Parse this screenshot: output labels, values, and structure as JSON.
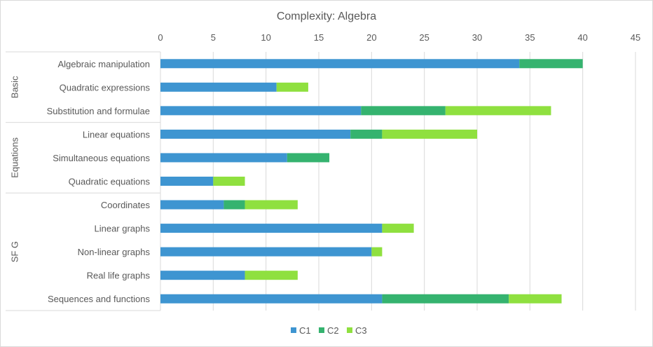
{
  "chart_data": {
    "type": "bar",
    "orientation": "horizontal",
    "stacked": true,
    "title": "Complexity:  Algebra",
    "xlim": [
      0,
      45
    ],
    "x_ticks": [
      0,
      5,
      10,
      15,
      20,
      25,
      30,
      35,
      40,
      45
    ],
    "x_axis_position": "top",
    "grid": true,
    "legend_position": "bottom",
    "groups": [
      {
        "label": "Basic",
        "categories": [
          "Algebraic manipulation",
          "Quadratic expressions",
          "Substitution and formulae"
        ]
      },
      {
        "label": "Equations",
        "categories": [
          "Linear equations",
          "Simultaneous equations",
          "Quadratic equations"
        ]
      },
      {
        "label": "SF G",
        "categories": [
          "Coordinates",
          "Linear graphs",
          "Non-linear graphs",
          "Real life graphs",
          "Sequences and functions"
        ]
      }
    ],
    "categories": [
      "Algebraic manipulation",
      "Quadratic expressions",
      "Substitution and formulae",
      "Linear equations",
      "Simultaneous equations",
      "Quadratic equations",
      "Coordinates",
      "Linear graphs",
      "Non-linear graphs",
      "Real life graphs",
      "Sequences and functions"
    ],
    "series": [
      {
        "name": "C1",
        "color": "#3e95d1",
        "values": [
          34,
          11,
          19,
          18,
          12,
          5,
          6,
          21,
          20,
          8,
          21
        ]
      },
      {
        "name": "C2",
        "color": "#35b36f",
        "values": [
          6,
          0,
          8,
          3,
          4,
          0,
          2,
          0,
          0,
          0,
          12
        ]
      },
      {
        "name": "C3",
        "color": "#8fe03f",
        "values": [
          0,
          3,
          10,
          9,
          0,
          3,
          5,
          3,
          1,
          5,
          5
        ]
      }
    ]
  }
}
